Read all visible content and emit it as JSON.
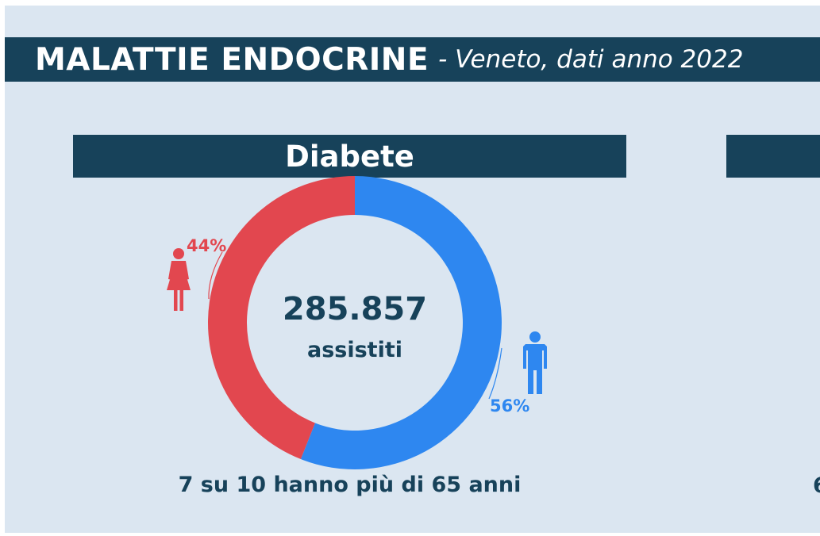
{
  "header": {
    "title": "MALATTIE ENDOCRINE",
    "subtitle": "- Veneto, dati anno 2022"
  },
  "section": {
    "title": "Diabete",
    "total_value": "285.857",
    "total_label": "assistiti",
    "footer": "7 su 10 hanno più di 65 anni",
    "next_panel_partial_text": "6"
  },
  "chart_data": {
    "type": "pie",
    "title": "Diabete",
    "donut": true,
    "center_value": "285.857",
    "center_label": "assistiti",
    "categories": [
      "female-icon",
      "male-icon"
    ],
    "values": [
      44,
      56
    ],
    "labels": [
      "44%",
      "56%"
    ],
    "colors": [
      "#e2474f",
      "#2e87f0"
    ]
  },
  "colors": {
    "background": "#dbe6f1",
    "bar": "#17425a",
    "female": "#e2474f",
    "male": "#2e87f0",
    "text": "#17425a"
  },
  "icons": [
    "female-icon",
    "male-icon"
  ]
}
